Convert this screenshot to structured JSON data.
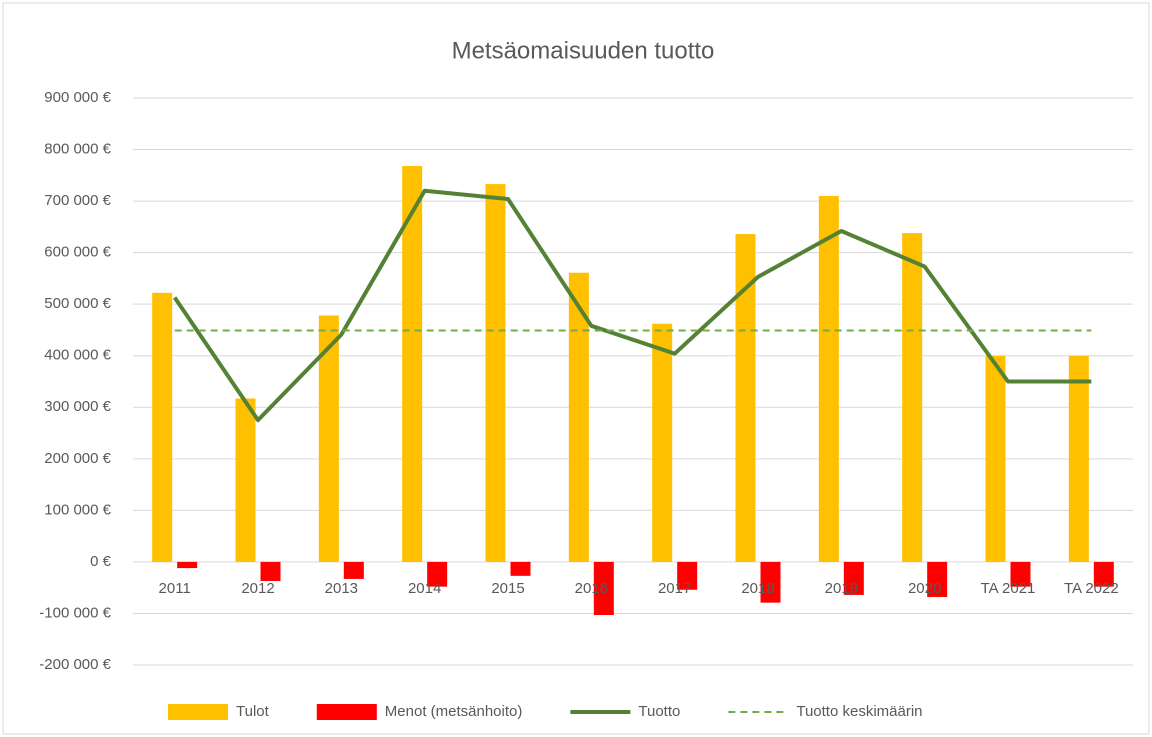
{
  "chart_data": {
    "type": "bar",
    "title": "Metsäomaisuuden tuotto",
    "categories": [
      "2011",
      "2012",
      "2013",
      "2014",
      "2015",
      "2016",
      "2017",
      "2018",
      "2019",
      "2020",
      "TA 2021",
      "TA 2022"
    ],
    "series": [
      {
        "name": "Tulot",
        "type": "bar",
        "color": "#ffc000",
        "values": [
          522000,
          317000,
          478000,
          768000,
          733000,
          561000,
          462000,
          636000,
          710000,
          638000,
          400000,
          400000
        ]
      },
      {
        "name": "Menot (metsänhoito)",
        "type": "bar",
        "color": "#ff0000",
        "values": [
          -12000,
          -37000,
          -33000,
          -48000,
          -27000,
          -103000,
          -54000,
          -79000,
          -64000,
          -68000,
          -48000,
          -48000
        ]
      },
      {
        "name": "Tuotto",
        "type": "line",
        "color": "#548235",
        "values": [
          513000,
          275000,
          441000,
          720000,
          704000,
          458000,
          404000,
          553000,
          642000,
          573000,
          350000,
          350000
        ]
      },
      {
        "name": "Tuotto keskimäärin",
        "type": "line",
        "dashed": true,
        "color": "#70ad47",
        "values": [
          449000,
          449000,
          449000,
          449000,
          449000,
          449000,
          449000,
          449000,
          449000,
          449000,
          449000,
          449000
        ]
      }
    ],
    "ylim": [
      -200000,
      900000
    ],
    "yticks": [
      {
        "value": -200000,
        "label": "-200 000 €"
      },
      {
        "value": -100000,
        "label": "-100 000 €"
      },
      {
        "value": 0,
        "label": "0 €"
      },
      {
        "value": 100000,
        "label": "100 000 €"
      },
      {
        "value": 200000,
        "label": "200 000 €"
      },
      {
        "value": 300000,
        "label": "300 000 €"
      },
      {
        "value": 400000,
        "label": "400 000 €"
      },
      {
        "value": 500000,
        "label": "500 000 €"
      },
      {
        "value": 600000,
        "label": "600 000 €"
      },
      {
        "value": 700000,
        "label": "700 000 €"
      },
      {
        "value": 800000,
        "label": "800 000 €"
      },
      {
        "value": 900000,
        "label": "900 000 €"
      }
    ],
    "grid": true,
    "legend": "bottom"
  }
}
